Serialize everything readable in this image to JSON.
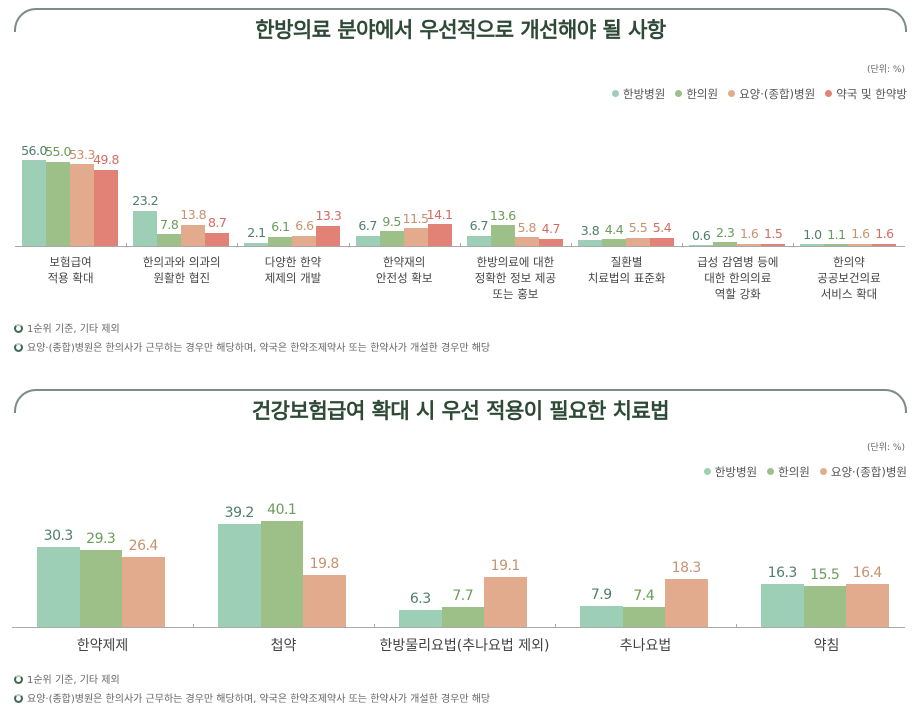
{
  "colors": {
    "한방병원": "#9ccfb5",
    "한의원": "#9dc088",
    "요양·(종합)병원": "#e2ab8e",
    "약국 및 한약방": "#e28276"
  },
  "label_colors": {
    "한방병원": "#4f7f6a",
    "한의원": "#6a9c5a",
    "요양·(종합)병원": "#c8926f",
    "약국 및 한약방": "#d46c62"
  },
  "chart_data": [
    {
      "type": "bar",
      "title": "한방의료 분야에서 우선적으로 개선해야 될 사항",
      "unit": "(단위: %)",
      "legend_position": "top-right",
      "categories": [
        "보험급여\n적용 확대",
        "한의과와 의과의\n원활한 협진",
        "다양한 한약\n제제의 개발",
        "한약재의\n안전성 확보",
        "한방의료에 대한\n정확한 정보 제공\n또는 홍보",
        "질환별\n치료법의 표준화",
        "급성 감염병 등에\n대한 한의의료\n역할 강화",
        "한의약\n공공보건의료\n서비스 확대"
      ],
      "series": [
        {
          "name": "한방병원",
          "values": [
            56.0,
            23.2,
            2.1,
            6.7,
            6.7,
            3.8,
            0.6,
            1.0
          ]
        },
        {
          "name": "한의원",
          "values": [
            55.0,
            7.8,
            6.1,
            9.5,
            13.6,
            4.4,
            2.3,
            1.1
          ]
        },
        {
          "name": "요양·(종합)병원",
          "values": [
            53.3,
            13.8,
            6.6,
            11.5,
            5.8,
            5.5,
            1.6,
            1.6
          ]
        },
        {
          "name": "약국 및 한약방",
          "values": [
            49.8,
            8.7,
            13.3,
            14.1,
            4.7,
            5.4,
            1.5,
            1.6
          ]
        }
      ],
      "notes": [
        "1순위 기준, 기타 제외",
        "요양·(종합)병원은 한의사가 근무하는 경우만 해당하며, 약국은 한약조제약사 또는 한약사가 개설한 경우만 해당"
      ]
    },
    {
      "type": "bar",
      "title": "건강보험급여 확대 시 우선 적용이 필요한 치료법",
      "unit": "(단위: %)",
      "legend_position": "top-right",
      "categories": [
        "한약제제",
        "첩약",
        "한방물리요법(추나요법 제외)",
        "추나요법",
        "약침"
      ],
      "series": [
        {
          "name": "한방병원",
          "values": [
            30.3,
            39.2,
            6.3,
            7.9,
            16.3
          ]
        },
        {
          "name": "한의원",
          "values": [
            29.3,
            40.1,
            7.7,
            7.4,
            15.5
          ]
        },
        {
          "name": "요양·(종합)병원",
          "values": [
            26.4,
            19.8,
            19.1,
            18.3,
            16.4
          ]
        }
      ],
      "notes": [
        "1순위 기준, 기타 제외",
        "요양·(종합)병원은 한의사가 근무하는 경우만 해당하며, 약국은 한약조제약사 또는 한약사가 개설한 경우만 해당"
      ]
    }
  ]
}
